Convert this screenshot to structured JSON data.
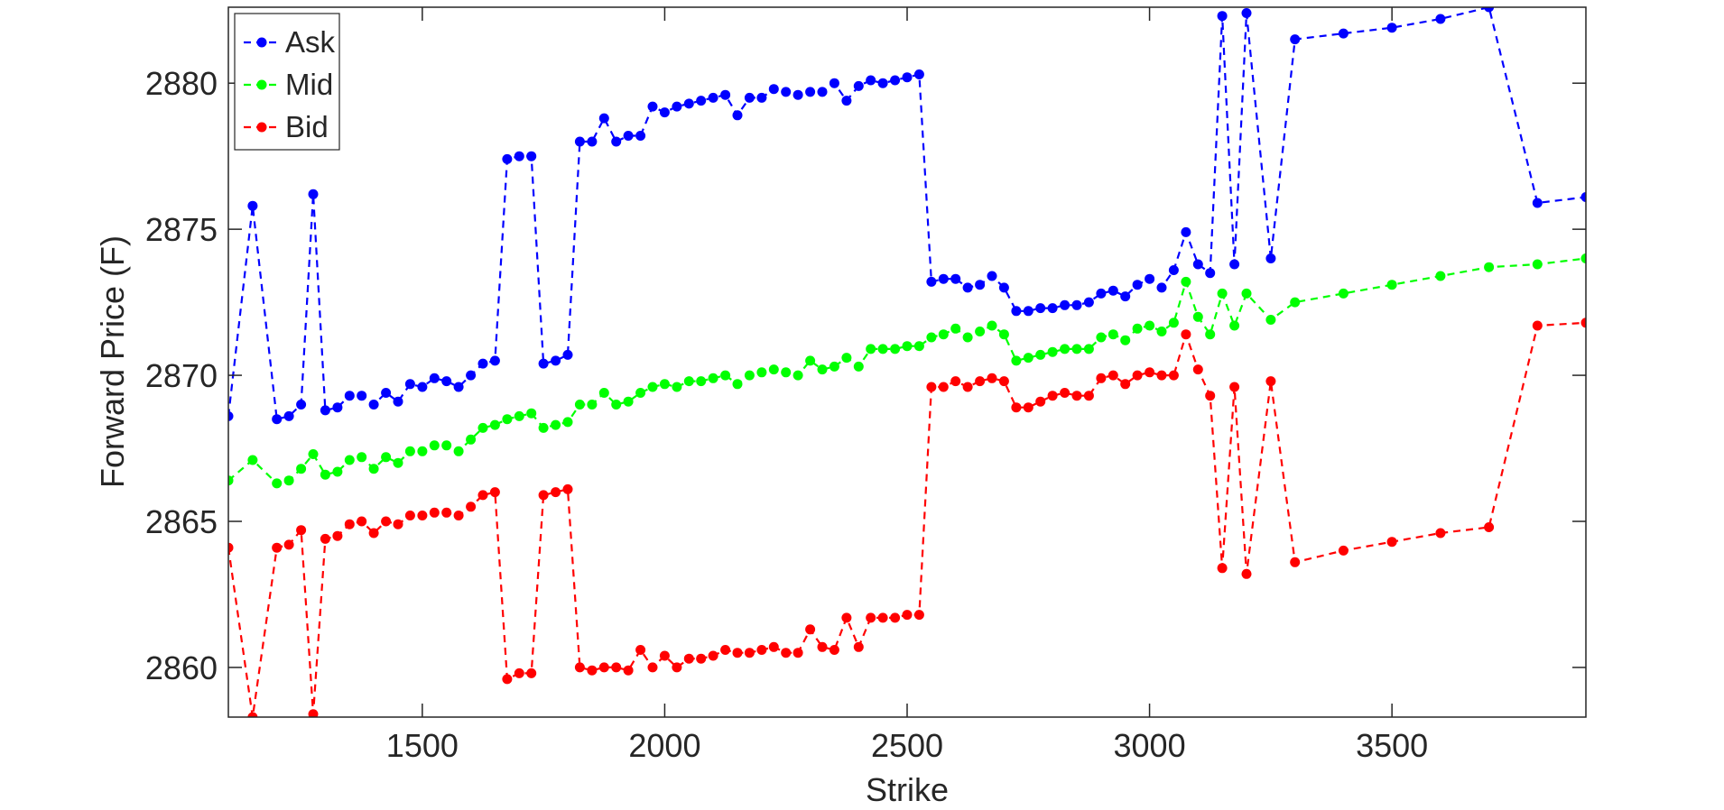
{
  "chart_data": {
    "type": "line",
    "xlabel": "Strike",
    "ylabel": "Forward Price (F)",
    "xlim": [
      1100,
      3900
    ],
    "ylim": [
      2858.3,
      2882.6
    ],
    "xticks": [
      1500,
      2000,
      2500,
      3000,
      3500
    ],
    "yticks": [
      2860,
      2865,
      2870,
      2875,
      2880
    ],
    "grid": false,
    "legend": "top-left",
    "x": [
      1100,
      1150,
      1200,
      1225,
      1250,
      1275,
      1300,
      1325,
      1350,
      1375,
      1400,
      1425,
      1450,
      1475,
      1500,
      1525,
      1550,
      1575,
      1600,
      1625,
      1650,
      1675,
      1700,
      1725,
      1750,
      1775,
      1800,
      1825,
      1850,
      1875,
      1900,
      1925,
      1950,
      1975,
      2000,
      2025,
      2050,
      2075,
      2100,
      2125,
      2150,
      2175,
      2200,
      2225,
      2250,
      2275,
      2300,
      2325,
      2350,
      2375,
      2400,
      2425,
      2450,
      2475,
      2500,
      2525,
      2550,
      2575,
      2600,
      2625,
      2650,
      2675,
      2700,
      2725,
      2750,
      2775,
      2800,
      2825,
      2850,
      2875,
      2900,
      2925,
      2950,
      2975,
      3000,
      3025,
      3050,
      3075,
      3100,
      3125,
      3150,
      3175,
      3200,
      3250,
      3300,
      3400,
      3500,
      3600,
      3700,
      3800,
      3900
    ],
    "series": [
      {
        "name": "Ask",
        "color": "#0000ff",
        "values": [
          2868.6,
          2875.8,
          2868.5,
          2868.6,
          2869.0,
          2876.2,
          2868.8,
          2868.9,
          2869.3,
          2869.3,
          2869.0,
          2869.4,
          2869.1,
          2869.7,
          2869.6,
          2869.9,
          2869.8,
          2869.6,
          2870.0,
          2870.4,
          2870.5,
          2877.4,
          2877.5,
          2877.5,
          2870.4,
          2870.5,
          2870.7,
          2878.0,
          2878.0,
          2878.8,
          2878.0,
          2878.2,
          2878.2,
          2879.2,
          2879.0,
          2879.2,
          2879.3,
          2879.4,
          2879.5,
          2879.6,
          2878.9,
          2879.5,
          2879.5,
          2879.8,
          2879.7,
          2879.6,
          2879.7,
          2879.7,
          2880.0,
          2879.4,
          2879.9,
          2880.1,
          2880.0,
          2880.1,
          2880.2,
          2880.3,
          2873.2,
          2873.3,
          2873.3,
          2873.0,
          2873.1,
          2873.4,
          2873.0,
          2872.2,
          2872.2,
          2872.3,
          2872.3,
          2872.4,
          2872.4,
          2872.5,
          2872.8,
          2872.9,
          2872.7,
          2873.1,
          2873.3,
          2873.0,
          2873.6,
          2874.9,
          2873.8,
          2873.5,
          2882.3,
          2873.8,
          2882.4,
          2874.0,
          2881.5,
          2881.7,
          2881.9,
          2882.2,
          2882.6,
          2875.9,
          2876.1
        ]
      },
      {
        "name": "Mid",
        "color": "#00ff00",
        "values": [
          2866.4,
          2867.1,
          2866.3,
          2866.4,
          2866.8,
          2867.3,
          2866.6,
          2866.7,
          2867.1,
          2867.2,
          2866.8,
          2867.2,
          2867.0,
          2867.4,
          2867.4,
          2867.6,
          2867.6,
          2867.4,
          2867.8,
          2868.2,
          2868.3,
          2868.5,
          2868.6,
          2868.7,
          2868.2,
          2868.3,
          2868.4,
          2869.0,
          2869.0,
          2869.4,
          2869.0,
          2869.1,
          2869.4,
          2869.6,
          2869.7,
          2869.6,
          2869.8,
          2869.8,
          2869.9,
          2870.0,
          2869.7,
          2870.0,
          2870.1,
          2870.2,
          2870.1,
          2870.0,
          2870.5,
          2870.2,
          2870.3,
          2870.6,
          2870.3,
          2870.9,
          2870.9,
          2870.9,
          2871.0,
          2871.0,
          2871.3,
          2871.4,
          2871.6,
          2871.3,
          2871.5,
          2871.7,
          2871.4,
          2870.5,
          2870.6,
          2870.7,
          2870.8,
          2870.9,
          2870.9,
          2870.9,
          2871.3,
          2871.4,
          2871.2,
          2871.6,
          2871.7,
          2871.5,
          2871.8,
          2873.2,
          2872.0,
          2871.4,
          2872.8,
          2871.7,
          2872.8,
          2871.9,
          2872.5,
          2872.8,
          2873.1,
          2873.4,
          2873.7,
          2873.8,
          2874.0
        ]
      },
      {
        "name": "Bid",
        "color": "#ff0000",
        "values": [
          2864.1,
          2858.3,
          2864.1,
          2864.2,
          2864.7,
          2858.4,
          2864.4,
          2864.5,
          2864.9,
          2865.0,
          2864.6,
          2865.0,
          2864.9,
          2865.2,
          2865.2,
          2865.3,
          2865.3,
          2865.2,
          2865.5,
          2865.9,
          2866.0,
          2859.6,
          2859.8,
          2859.8,
          2865.9,
          2866.0,
          2866.1,
          2860.0,
          2859.9,
          2860.0,
          2860.0,
          2859.9,
          2860.6,
          2860.0,
          2860.4,
          2860.0,
          2860.3,
          2860.3,
          2860.4,
          2860.6,
          2860.5,
          2860.5,
          2860.6,
          2860.7,
          2860.5,
          2860.5,
          2861.3,
          2860.7,
          2860.6,
          2861.7,
          2860.7,
          2861.7,
          2861.7,
          2861.7,
          2861.8,
          2861.8,
          2869.6,
          2869.6,
          2869.8,
          2869.6,
          2869.8,
          2869.9,
          2869.8,
          2868.9,
          2868.9,
          2869.1,
          2869.3,
          2869.4,
          2869.3,
          2869.3,
          2869.9,
          2870.0,
          2869.7,
          2870.0,
          2870.1,
          2870.0,
          2870.0,
          2871.4,
          2870.2,
          2869.3,
          2863.4,
          2869.6,
          2863.2,
          2869.8,
          2863.6,
          2864.0,
          2864.3,
          2864.6,
          2864.8,
          2871.7,
          2871.8
        ]
      }
    ]
  }
}
